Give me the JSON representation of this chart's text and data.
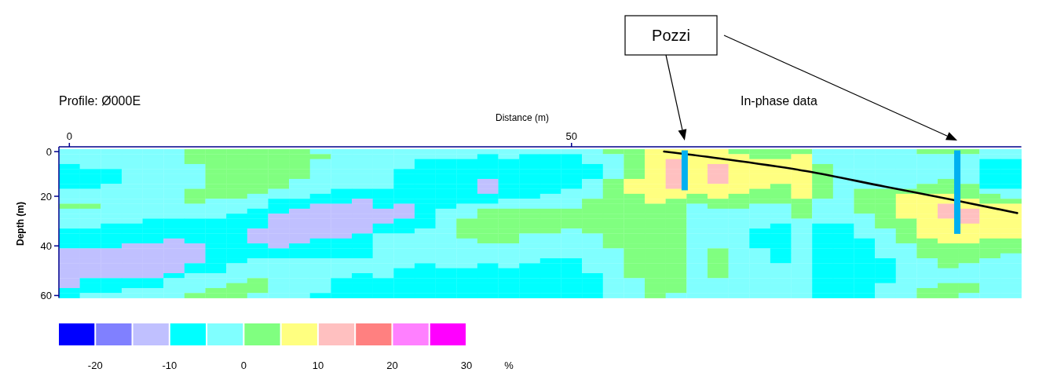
{
  "chart_data": {
    "type": "heatmap",
    "title": "Profile: Ø000E",
    "subtitle": "In-phase data",
    "xlabel": "Distance (m)",
    "ylabel": "Depth (m)",
    "clabel": "%",
    "annotations": [
      "Pozzi"
    ],
    "categories": [
      "0",
      null,
      null,
      null,
      null,
      null,
      null,
      null,
      null,
      null,
      null,
      null,
      null,
      null,
      null,
      null,
      null,
      null,
      null,
      null,
      null,
      null,
      null,
      null,
      "50",
      null,
      null,
      null,
      null,
      null,
      null,
      null,
      null,
      null,
      null,
      null,
      null,
      null,
      null,
      null,
      null,
      null,
      null,
      null,
      null,
      null
    ],
    "y_categories": [
      "0",
      null,
      null,
      null,
      null,
      null,
      null,
      null,
      null,
      "20",
      null,
      null,
      null,
      null,
      null,
      null,
      null,
      null,
      null,
      "40",
      null,
      null,
      null,
      null,
      null,
      null,
      null,
      null,
      null,
      "60"
    ],
    "clim": [
      -25,
      30
    ],
    "cticks": [
      -20,
      -10,
      0,
      10,
      20,
      30
    ],
    "cells": [
      [
        -2.5,
        -2.5,
        -2.5,
        -2.5,
        -2.5,
        -2.5,
        2.5,
        2.5,
        2.5,
        2.5,
        2.5,
        2.5,
        -2.5,
        -2.5,
        -2.5,
        -2.5,
        -2.5,
        -2.5,
        -2.5,
        -2.5,
        -2.5,
        -2.5,
        -2.5,
        -2.5,
        -2.5,
        -2.5,
        2.5,
        2.5,
        7.5,
        7.5,
        7.5,
        7.5,
        2.5,
        2.5,
        2.5,
        2.5,
        -2.5,
        -2.5,
        -2.5,
        -2.5,
        -2.5,
        2.5,
        2.5,
        2.5,
        -2.5,
        -2.5
      ],
      [
        -2.5,
        -2.5,
        -2.5,
        -2.5,
        -2.5,
        -2.5,
        2.5,
        2.5,
        2.5,
        2.5,
        2.5,
        2.5,
        2.5,
        -2.5,
        -2.5,
        -2.5,
        -2.5,
        -2.5,
        -2.5,
        -2.5,
        -7.5,
        -2.5,
        -7.5,
        -7.5,
        -7.5,
        -2.5,
        -2.5,
        2.5,
        7.5,
        7.5,
        7.5,
        7.5,
        7.5,
        2.5,
        2.5,
        7.5,
        -2.5,
        -2.5,
        -2.5,
        -2.5,
        -2.5,
        -2.5,
        -2.5,
        -2.5,
        -2.5,
        -2.5
      ],
      [
        -2.5,
        -2.5,
        -2.5,
        -2.5,
        -2.5,
        -2.5,
        2.5,
        2.5,
        2.5,
        2.5,
        2.5,
        2.5,
        -2.5,
        -2.5,
        -2.5,
        -2.5,
        -2.5,
        -7.5,
        -7.5,
        -7.5,
        -7.5,
        -7.5,
        -7.5,
        -7.5,
        -7.5,
        -2.5,
        -2.5,
        2.5,
        7.5,
        12.5,
        7.5,
        7.5,
        7.5,
        7.5,
        7.5,
        7.5,
        -2.5,
        -2.5,
        -2.5,
        -2.5,
        -2.5,
        -2.5,
        -2.5,
        -2.5,
        -7.5,
        -7.5
      ],
      [
        -7.5,
        -2.5,
        -2.5,
        -2.5,
        -2.5,
        -2.5,
        -2.5,
        2.5,
        2.5,
        2.5,
        2.5,
        2.5,
        -2.5,
        -2.5,
        -2.5,
        -2.5,
        -2.5,
        -7.5,
        -7.5,
        -7.5,
        -7.5,
        -7.5,
        -7.5,
        -7.5,
        -7.5,
        -7.5,
        -2.5,
        2.5,
        7.5,
        12.5,
        7.5,
        12.5,
        7.5,
        7.5,
        7.5,
        7.5,
        2.5,
        -2.5,
        -2.5,
        -2.5,
        -2.5,
        -2.5,
        -2.5,
        -2.5,
        -7.5,
        -7.5
      ],
      [
        -7.5,
        -7.5,
        -7.5,
        -2.5,
        -2.5,
        -2.5,
        -2.5,
        2.5,
        2.5,
        2.5,
        2.5,
        2.5,
        -2.5,
        -2.5,
        -2.5,
        -2.5,
        -7.5,
        -7.5,
        -7.5,
        -7.5,
        -7.5,
        -7.5,
        -7.5,
        -7.5,
        -7.5,
        -7.5,
        -2.5,
        2.5,
        7.5,
        12.5,
        7.5,
        12.5,
        7.5,
        7.5,
        7.5,
        7.5,
        2.5,
        -2.5,
        -2.5,
        -2.5,
        -2.5,
        -2.5,
        -2.5,
        -2.5,
        -7.5,
        -7.5
      ],
      [
        -7.5,
        -7.5,
        -7.5,
        -2.5,
        -2.5,
        -2.5,
        -2.5,
        2.5,
        2.5,
        2.5,
        2.5,
        2.5,
        -2.5,
        -2.5,
        -2.5,
        -2.5,
        -7.5,
        -7.5,
        -7.5,
        -7.5,
        -7.5,
        -7.5,
        -7.5,
        -7.5,
        -7.5,
        -7.5,
        -2.5,
        2.5,
        7.5,
        12.5,
        7.5,
        12.5,
        7.5,
        7.5,
        7.5,
        7.5,
        2.5,
        -2.5,
        -2.5,
        -2.5,
        -2.5,
        -2.5,
        -2.5,
        -2.5,
        -7.5,
        -7.5
      ],
      [
        -7.5,
        -7.5,
        -7.5,
        -2.5,
        -2.5,
        -2.5,
        -2.5,
        2.5,
        2.5,
        2.5,
        2.5,
        -2.5,
        -2.5,
        -2.5,
        -2.5,
        -2.5,
        -7.5,
        -7.5,
        -7.5,
        -7.5,
        -12.5,
        -7.5,
        -7.5,
        -7.5,
        -7.5,
        -2.5,
        2.5,
        7.5,
        7.5,
        12.5,
        7.5,
        12.5,
        7.5,
        7.5,
        7.5,
        7.5,
        2.5,
        -2.5,
        -2.5,
        -2.5,
        -2.5,
        -2.5,
        2.5,
        -2.5,
        -7.5,
        -7.5
      ],
      [
        -7.5,
        -7.5,
        -2.5,
        -2.5,
        -2.5,
        -2.5,
        -2.5,
        2.5,
        2.5,
        2.5,
        2.5,
        -2.5,
        -2.5,
        -2.5,
        -2.5,
        -2.5,
        -7.5,
        -7.5,
        -7.5,
        -7.5,
        -12.5,
        -7.5,
        -7.5,
        -7.5,
        -7.5,
        -2.5,
        2.5,
        7.5,
        7.5,
        12.5,
        7.5,
        7.5,
        7.5,
        7.5,
        2.5,
        7.5,
        2.5,
        -2.5,
        -2.5,
        -2.5,
        -2.5,
        2.5,
        2.5,
        2.5,
        -7.5,
        -7.5
      ],
      [
        -2.5,
        -2.5,
        -2.5,
        -2.5,
        -2.5,
        -2.5,
        2.5,
        2.5,
        2.5,
        2.5,
        -2.5,
        -2.5,
        -2.5,
        -7.5,
        -7.5,
        -7.5,
        -7.5,
        -7.5,
        -7.5,
        -7.5,
        -12.5,
        -7.5,
        -7.5,
        -7.5,
        -2.5,
        -2.5,
        2.5,
        7.5,
        7.5,
        7.5,
        7.5,
        7.5,
        7.5,
        2.5,
        2.5,
        7.5,
        2.5,
        -2.5,
        2.5,
        2.5,
        2.5,
        2.5,
        2.5,
        2.5,
        -2.5,
        -2.5
      ],
      [
        -2.5,
        -2.5,
        -2.5,
        -2.5,
        -2.5,
        -2.5,
        2.5,
        2.5,
        2.5,
        -2.5,
        -2.5,
        -2.5,
        -7.5,
        -7.5,
        -7.5,
        -7.5,
        -7.5,
        -7.5,
        -7.5,
        -7.5,
        -7.5,
        -7.5,
        -7.5,
        -2.5,
        -2.5,
        -2.5,
        2.5,
        2.5,
        7.5,
        7.5,
        2.5,
        7.5,
        2.5,
        2.5,
        2.5,
        7.5,
        2.5,
        -2.5,
        2.5,
        2.5,
        7.5,
        7.5,
        7.5,
        2.5,
        2.5,
        -2.5
      ],
      [
        -2.5,
        -2.5,
        -2.5,
        -2.5,
        -2.5,
        -2.5,
        2.5,
        -2.5,
        -2.5,
        -2.5,
        -7.5,
        -7.5,
        -7.5,
        -7.5,
        -12.5,
        -7.5,
        -7.5,
        -7.5,
        -7.5,
        -7.5,
        -7.5,
        -2.5,
        -2.5,
        -2.5,
        -2.5,
        2.5,
        2.5,
        2.5,
        7.5,
        2.5,
        2.5,
        2.5,
        2.5,
        2.5,
        2.5,
        2.5,
        -2.5,
        -2.5,
        2.5,
        2.5,
        7.5,
        7.5,
        7.5,
        7.5,
        2.5,
        2.5
      ],
      [
        2.5,
        2.5,
        -2.5,
        -2.5,
        -2.5,
        -2.5,
        -2.5,
        -2.5,
        -2.5,
        -2.5,
        -7.5,
        -7.5,
        -12.5,
        -12.5,
        -12.5,
        -7.5,
        -12.5,
        -7.5,
        -7.5,
        -2.5,
        -2.5,
        -2.5,
        -2.5,
        -2.5,
        -2.5,
        2.5,
        2.5,
        2.5,
        2.5,
        2.5,
        -2.5,
        2.5,
        2.5,
        -2.5,
        -2.5,
        2.5,
        -2.5,
        -2.5,
        2.5,
        2.5,
        7.5,
        7.5,
        12.5,
        7.5,
        7.5,
        7.5
      ],
      [
        -2.5,
        -2.5,
        -2.5,
        -2.5,
        -2.5,
        -2.5,
        -2.5,
        -2.5,
        -2.5,
        -7.5,
        -7.5,
        -12.5,
        -12.5,
        -12.5,
        -12.5,
        -12.5,
        -12.5,
        -7.5,
        -2.5,
        -2.5,
        2.5,
        2.5,
        2.5,
        2.5,
        2.5,
        2.5,
        2.5,
        2.5,
        2.5,
        2.5,
        -2.5,
        -2.5,
        -2.5,
        -2.5,
        -2.5,
        2.5,
        -2.5,
        -2.5,
        2.5,
        2.5,
        7.5,
        7.5,
        12.5,
        12.5,
        7.5,
        7.5
      ],
      [
        -2.5,
        -2.5,
        -2.5,
        -2.5,
        -2.5,
        -2.5,
        -2.5,
        -2.5,
        -7.5,
        -7.5,
        -12.5,
        -12.5,
        -12.5,
        -12.5,
        -12.5,
        -12.5,
        -12.5,
        -7.5,
        -2.5,
        -2.5,
        2.5,
        2.5,
        2.5,
        2.5,
        2.5,
        2.5,
        2.5,
        2.5,
        2.5,
        2.5,
        -2.5,
        -2.5,
        -2.5,
        -2.5,
        -2.5,
        2.5,
        -2.5,
        -2.5,
        -2.5,
        2.5,
        7.5,
        7.5,
        12.5,
        12.5,
        7.5,
        7.5
      ],
      [
        -2.5,
        -2.5,
        -2.5,
        -2.5,
        -7.5,
        -7.5,
        -7.5,
        -7.5,
        -7.5,
        -7.5,
        -12.5,
        -12.5,
        -12.5,
        -12.5,
        -12.5,
        -12.5,
        -7.5,
        -7.5,
        -2.5,
        2.5,
        2.5,
        2.5,
        2.5,
        2.5,
        2.5,
        2.5,
        2.5,
        2.5,
        2.5,
        2.5,
        -2.5,
        -2.5,
        -2.5,
        -2.5,
        -2.5,
        -2.5,
        -2.5,
        -2.5,
        -2.5,
        2.5,
        2.5,
        7.5,
        7.5,
        12.5,
        7.5,
        7.5
      ],
      [
        -2.5,
        -2.5,
        -7.5,
        -7.5,
        -7.5,
        -7.5,
        -7.5,
        -7.5,
        -7.5,
        -7.5,
        -12.5,
        -12.5,
        -12.5,
        -12.5,
        -12.5,
        -7.5,
        -7.5,
        -7.5,
        -2.5,
        2.5,
        2.5,
        2.5,
        2.5,
        2.5,
        2.5,
        2.5,
        2.5,
        2.5,
        2.5,
        2.5,
        -2.5,
        -2.5,
        -2.5,
        -2.5,
        -7.5,
        -2.5,
        -7.5,
        -7.5,
        -2.5,
        2.5,
        2.5,
        7.5,
        7.5,
        7.5,
        7.5,
        7.5
      ],
      [
        -7.5,
        -7.5,
        -7.5,
        -7.5,
        -7.5,
        -7.5,
        -7.5,
        -7.5,
        -7.5,
        -12.5,
        -12.5,
        -12.5,
        -12.5,
        -12.5,
        -12.5,
        -7.5,
        -7.5,
        -2.5,
        -2.5,
        2.5,
        2.5,
        2.5,
        2.5,
        2.5,
        -2.5,
        2.5,
        2.5,
        2.5,
        2.5,
        2.5,
        -2.5,
        -2.5,
        -2.5,
        -7.5,
        -7.5,
        -2.5,
        -7.5,
        -7.5,
        -2.5,
        -2.5,
        2.5,
        7.5,
        7.5,
        7.5,
        7.5,
        7.5
      ],
      [
        -7.5,
        -7.5,
        -7.5,
        -7.5,
        -7.5,
        -7.5,
        -7.5,
        -7.5,
        -7.5,
        -12.5,
        -12.5,
        -12.5,
        -12.5,
        -12.5,
        -7.5,
        -2.5,
        -2.5,
        -2.5,
        -2.5,
        2.5,
        2.5,
        2.5,
        -2.5,
        -2.5,
        -2.5,
        -2.5,
        2.5,
        2.5,
        2.5,
        2.5,
        -2.5,
        -2.5,
        -2.5,
        -7.5,
        -7.5,
        -2.5,
        -7.5,
        -7.5,
        -2.5,
        -2.5,
        2.5,
        7.5,
        7.5,
        7.5,
        7.5,
        7.5
      ],
      [
        -7.5,
        -7.5,
        -7.5,
        -7.5,
        -7.5,
        -12.5,
        -7.5,
        -7.5,
        -7.5,
        -12.5,
        -12.5,
        -12.5,
        -7.5,
        -7.5,
        -7.5,
        -2.5,
        -2.5,
        -2.5,
        -2.5,
        -2.5,
        2.5,
        2.5,
        -2.5,
        -2.5,
        -2.5,
        -2.5,
        2.5,
        2.5,
        2.5,
        2.5,
        -2.5,
        -2.5,
        -2.5,
        -7.5,
        -7.5,
        -2.5,
        -7.5,
        -7.5,
        -7.5,
        -2.5,
        2.5,
        2.5,
        7.5,
        7.5,
        2.5,
        2.5
      ],
      [
        -7.5,
        -7.5,
        -7.5,
        -12.5,
        -12.5,
        -12.5,
        -12.5,
        -7.5,
        -7.5,
        -7.5,
        -12.5,
        -7.5,
        -7.5,
        -7.5,
        -7.5,
        -2.5,
        -2.5,
        -2.5,
        -2.5,
        -2.5,
        -2.5,
        -2.5,
        -2.5,
        -2.5,
        -2.5,
        -2.5,
        2.5,
        2.5,
        2.5,
        2.5,
        -2.5,
        -2.5,
        -2.5,
        -7.5,
        -7.5,
        -2.5,
        -7.5,
        -7.5,
        -7.5,
        -2.5,
        -2.5,
        2.5,
        2.5,
        2.5,
        2.5,
        2.5
      ],
      [
        -12.5,
        -12.5,
        -12.5,
        -12.5,
        -12.5,
        -12.5,
        -12.5,
        -7.5,
        -7.5,
        -7.5,
        -7.5,
        -7.5,
        -7.5,
        -7.5,
        -7.5,
        -2.5,
        -2.5,
        -2.5,
        -2.5,
        -2.5,
        -2.5,
        -2.5,
        -2.5,
        -2.5,
        -2.5,
        -2.5,
        -2.5,
        2.5,
        2.5,
        2.5,
        -2.5,
        2.5,
        -2.5,
        -2.5,
        -7.5,
        -2.5,
        -7.5,
        -7.5,
        -7.5,
        -2.5,
        -2.5,
        2.5,
        2.5,
        2.5,
        2.5,
        2.5
      ],
      [
        -12.5,
        -12.5,
        -12.5,
        -12.5,
        -12.5,
        -12.5,
        -12.5,
        -7.5,
        -7.5,
        -7.5,
        -7.5,
        -7.5,
        -7.5,
        -7.5,
        -7.5,
        -2.5,
        -2.5,
        -2.5,
        -2.5,
        -2.5,
        -2.5,
        -2.5,
        -2.5,
        -2.5,
        -2.5,
        -2.5,
        -2.5,
        2.5,
        2.5,
        2.5,
        -2.5,
        2.5,
        -2.5,
        -2.5,
        -7.5,
        -2.5,
        -7.5,
        -7.5,
        -7.5,
        -2.5,
        -2.5,
        2.5,
        2.5,
        2.5,
        2.5,
        -2.5
      ],
      [
        -12.5,
        -12.5,
        -12.5,
        -12.5,
        -12.5,
        -12.5,
        -12.5,
        -7.5,
        -7.5,
        -2.5,
        -2.5,
        -2.5,
        -2.5,
        -2.5,
        -2.5,
        -2.5,
        -2.5,
        -2.5,
        -2.5,
        -2.5,
        -2.5,
        -2.5,
        -2.5,
        -7.5,
        -7.5,
        -2.5,
        -2.5,
        2.5,
        2.5,
        2.5,
        -2.5,
        2.5,
        -2.5,
        -2.5,
        -7.5,
        -2.5,
        -7.5,
        -7.5,
        -7.5,
        -7.5,
        -2.5,
        -2.5,
        2.5,
        2.5,
        -2.5,
        -2.5
      ],
      [
        -12.5,
        -12.5,
        -12.5,
        -12.5,
        -12.5,
        -12.5,
        -7.5,
        -7.5,
        -2.5,
        -2.5,
        -2.5,
        -2.5,
        -2.5,
        -2.5,
        -2.5,
        -2.5,
        -2.5,
        -7.5,
        -2.5,
        -2.5,
        -7.5,
        -2.5,
        -7.5,
        -7.5,
        -7.5,
        -2.5,
        -2.5,
        2.5,
        2.5,
        2.5,
        -2.5,
        2.5,
        -2.5,
        -2.5,
        -2.5,
        -2.5,
        -7.5,
        -7.5,
        -7.5,
        -7.5,
        -2.5,
        -2.5,
        2.5,
        -2.5,
        -2.5,
        -2.5
      ],
      [
        -12.5,
        -12.5,
        -12.5,
        -12.5,
        -12.5,
        -12.5,
        -7.5,
        -7.5,
        -2.5,
        -2.5,
        -2.5,
        -2.5,
        -2.5,
        -2.5,
        -2.5,
        -2.5,
        -7.5,
        -7.5,
        -7.5,
        -7.5,
        -7.5,
        -7.5,
        -7.5,
        -7.5,
        -7.5,
        -2.5,
        -2.5,
        2.5,
        2.5,
        2.5,
        -2.5,
        2.5,
        -2.5,
        -2.5,
        -2.5,
        -2.5,
        -7.5,
        -7.5,
        -7.5,
        -7.5,
        -2.5,
        -2.5,
        -2.5,
        -2.5,
        -2.5,
        -2.5
      ],
      [
        -12.5,
        -12.5,
        -12.5,
        -12.5,
        -12.5,
        -7.5,
        -2.5,
        -2.5,
        -2.5,
        -2.5,
        -2.5,
        -2.5,
        -2.5,
        -2.5,
        -7.5,
        -2.5,
        -7.5,
        -7.5,
        -7.5,
        -7.5,
        -7.5,
        -7.5,
        -7.5,
        -7.5,
        -7.5,
        -7.5,
        -2.5,
        2.5,
        2.5,
        2.5,
        -2.5,
        2.5,
        -2.5,
        -2.5,
        -2.5,
        -2.5,
        -7.5,
        -7.5,
        -7.5,
        -7.5,
        -2.5,
        -2.5,
        -2.5,
        -2.5,
        -2.5,
        -2.5
      ],
      [
        -12.5,
        -7.5,
        -7.5,
        -7.5,
        -7.5,
        -2.5,
        -2.5,
        -2.5,
        -2.5,
        2.5,
        -2.5,
        -2.5,
        -2.5,
        -7.5,
        -7.5,
        -7.5,
        -7.5,
        -7.5,
        -7.5,
        -7.5,
        -7.5,
        -7.5,
        -7.5,
        -7.5,
        -7.5,
        -7.5,
        -2.5,
        -2.5,
        2.5,
        2.5,
        -2.5,
        -2.5,
        -2.5,
        -2.5,
        -2.5,
        -2.5,
        -7.5,
        -7.5,
        -7.5,
        -7.5,
        -2.5,
        -2.5,
        -2.5,
        -2.5,
        -2.5,
        -2.5
      ],
      [
        -12.5,
        -7.5,
        -7.5,
        -7.5,
        -7.5,
        -2.5,
        -2.5,
        -2.5,
        2.5,
        2.5,
        -2.5,
        -2.5,
        -2.5,
        -7.5,
        -7.5,
        -7.5,
        -7.5,
        -7.5,
        -7.5,
        -7.5,
        -7.5,
        -7.5,
        -7.5,
        -7.5,
        -7.5,
        -7.5,
        -2.5,
        -2.5,
        2.5,
        2.5,
        -2.5,
        -2.5,
        -2.5,
        -2.5,
        -2.5,
        -2.5,
        -7.5,
        -7.5,
        -7.5,
        -2.5,
        -2.5,
        -2.5,
        2.5,
        2.5,
        -2.5,
        -2.5
      ],
      [
        -7.5,
        -7.5,
        -7.5,
        -2.5,
        -2.5,
        -2.5,
        -2.5,
        2.5,
        2.5,
        2.5,
        -2.5,
        -2.5,
        -2.5,
        -7.5,
        -7.5,
        -7.5,
        -7.5,
        -7.5,
        -7.5,
        -7.5,
        -7.5,
        -7.5,
        -7.5,
        -7.5,
        -7.5,
        -7.5,
        -2.5,
        -2.5,
        2.5,
        2.5,
        -2.5,
        -2.5,
        -2.5,
        -2.5,
        -2.5,
        -2.5,
        -7.5,
        -7.5,
        -7.5,
        -2.5,
        -2.5,
        2.5,
        2.5,
        2.5,
        -2.5,
        -2.5
      ],
      [
        -7.5,
        -2.5,
        -2.5,
        -2.5,
        -2.5,
        -2.5,
        2.5,
        2.5,
        2.5,
        -2.5,
        -2.5,
        -2.5,
        -7.5,
        -7.5,
        -7.5,
        -7.5,
        -7.5,
        -7.5,
        -7.5,
        -7.5,
        -7.5,
        -7.5,
        -7.5,
        -7.5,
        -7.5,
        -7.5,
        -2.5,
        -2.5,
        2.5,
        -2.5,
        -2.5,
        -2.5,
        -2.5,
        -2.5,
        -2.5,
        -2.5,
        -7.5,
        -7.5,
        -7.5,
        -2.5,
        -2.5,
        2.5,
        2.5,
        -2.5,
        -2.5,
        -2.5
      ]
    ]
  }
}
